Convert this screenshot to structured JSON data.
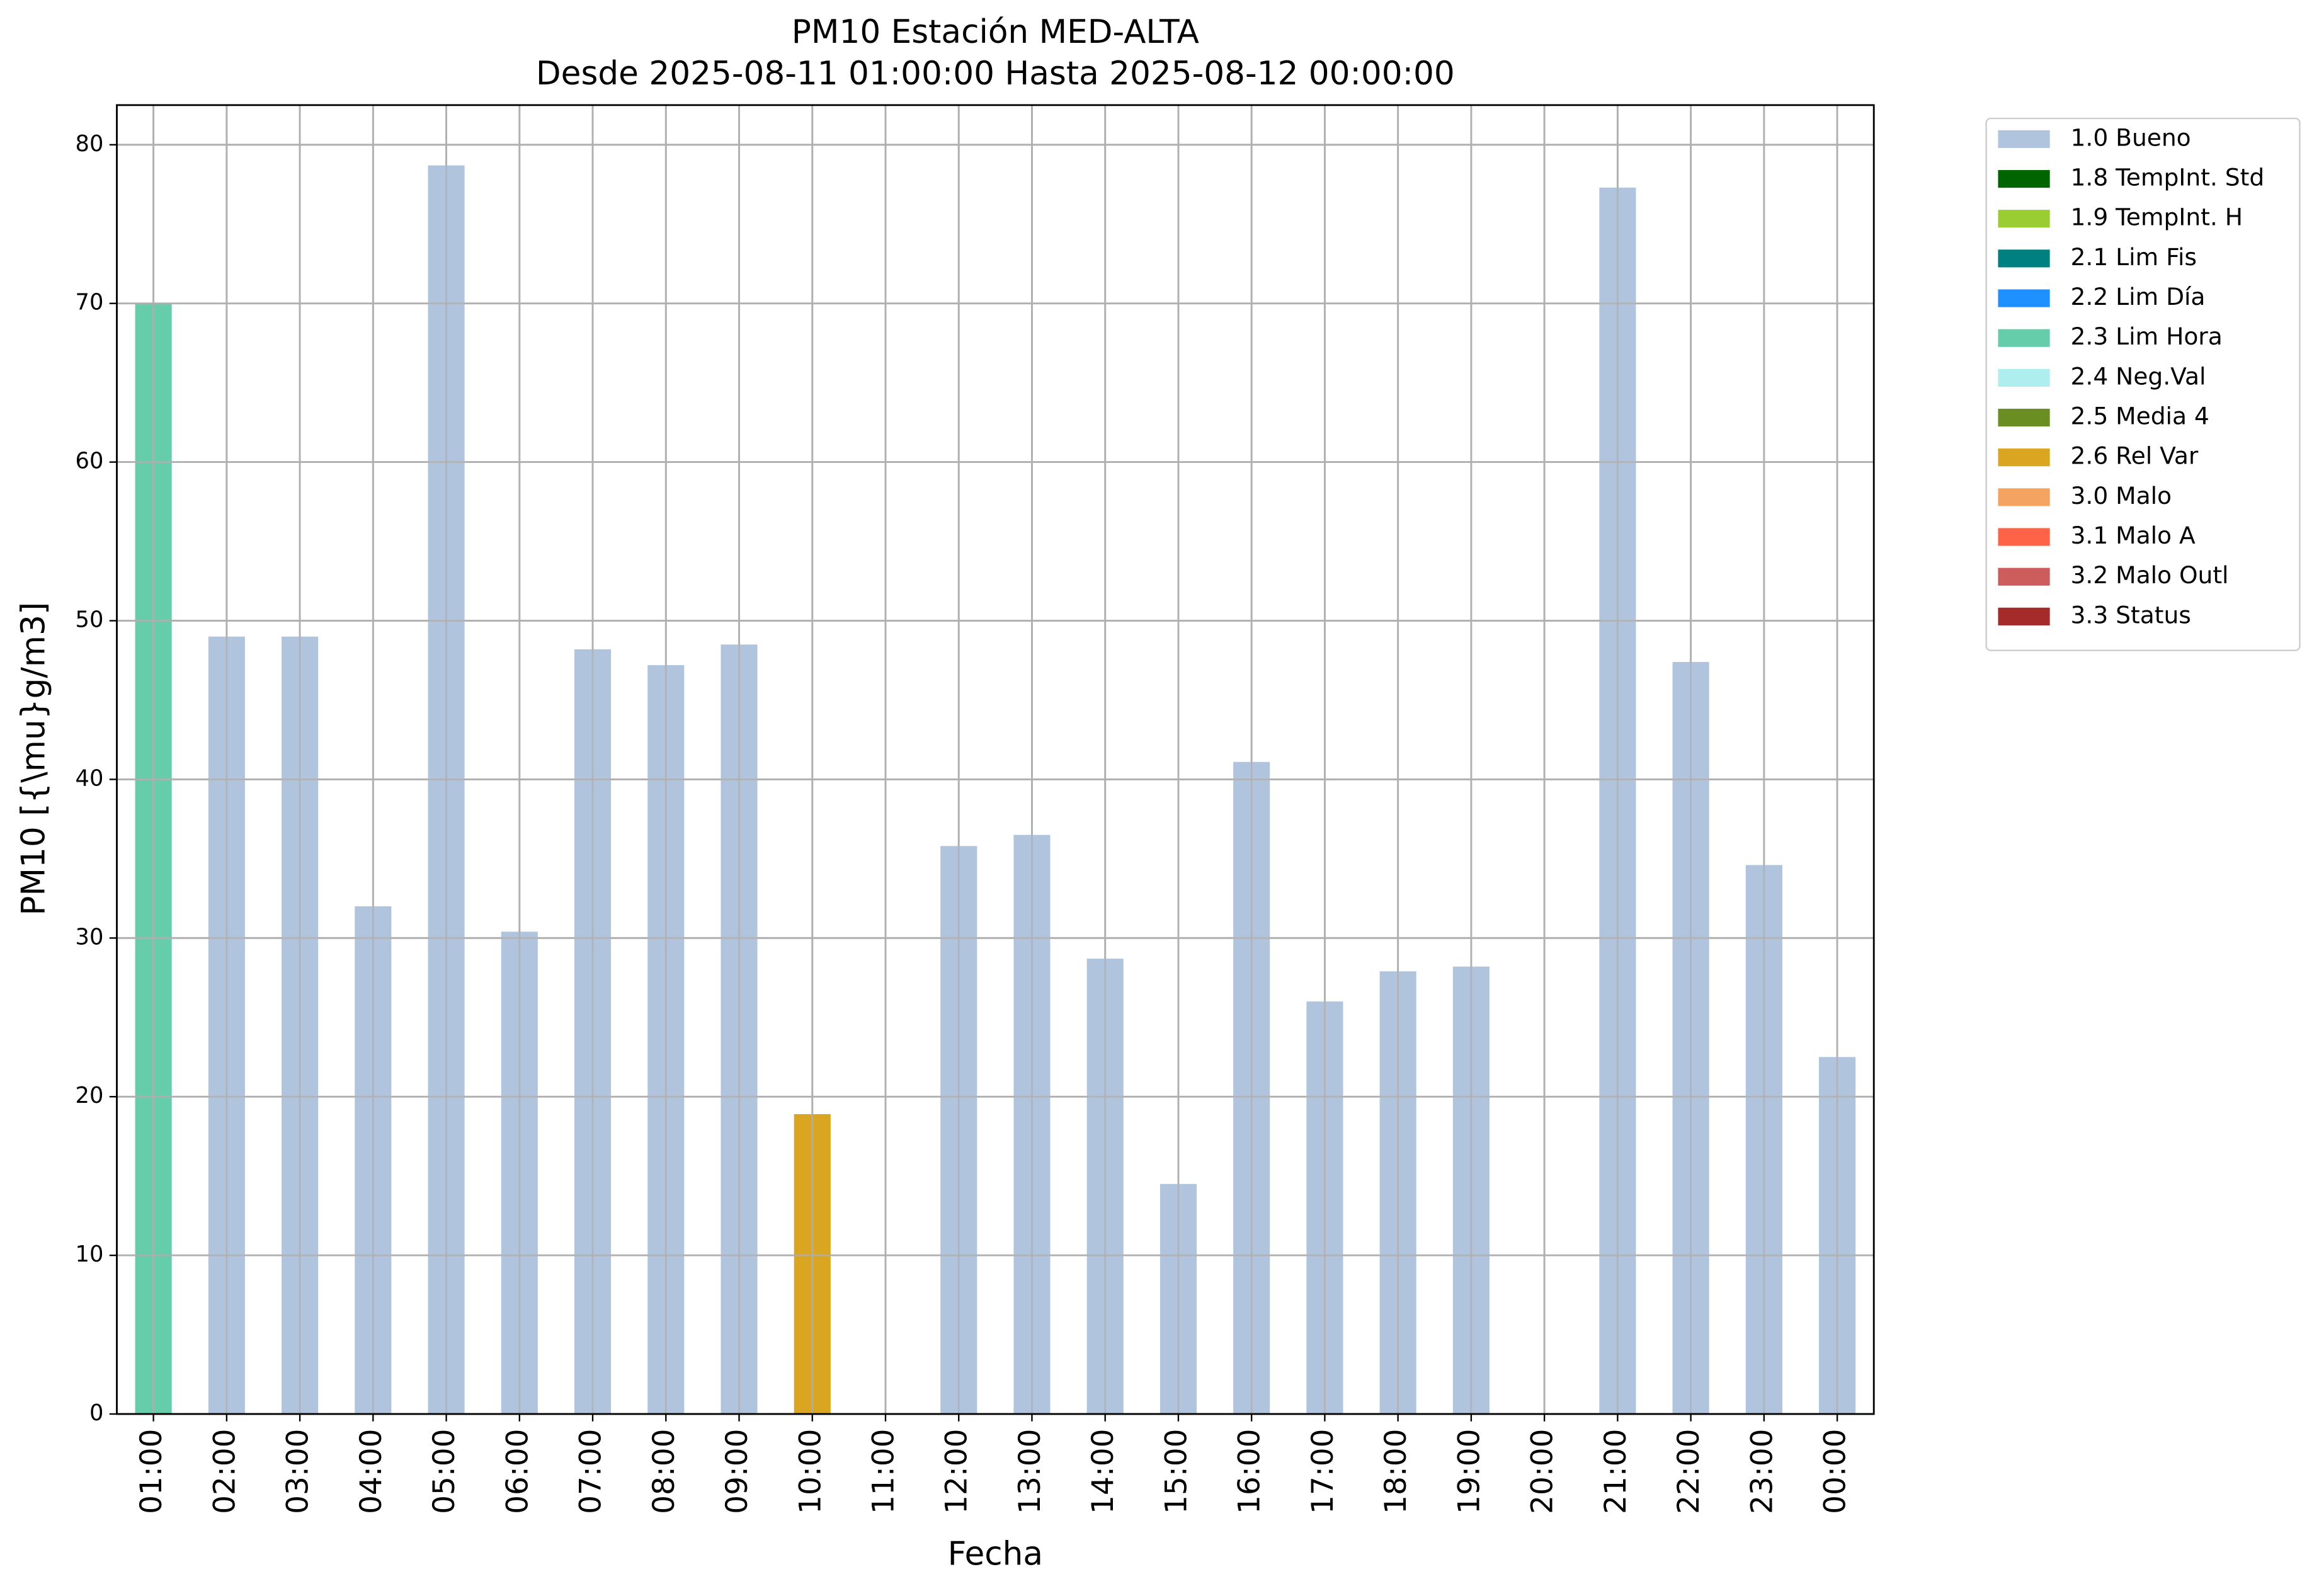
{
  "chart_data": {
    "type": "stacked_bar",
    "title": "PM10 Estación MED-ALTA",
    "subtitle": "Desde 2025-08-11 01:00:00 Hasta 2025-08-12 00:00:00",
    "x_label": "Fecha",
    "y_label": "PM10 [{\\mu}g/m3]",
    "categories": [
      "01:00",
      "02:00",
      "03:00",
      "04:00",
      "05:00",
      "06:00",
      "07:00",
      "08:00",
      "09:00",
      "10:00",
      "11:00",
      "12:00",
      "13:00",
      "14:00",
      "15:00",
      "16:00",
      "17:00",
      "18:00",
      "19:00",
      "20:00",
      "21:00",
      "22:00",
      "23:00",
      "00:00"
    ],
    "series": [
      {
        "name": "1.0 Bueno",
        "color": "#b0c4de",
        "values": [
          null,
          49,
          49,
          32,
          78.7,
          30.4,
          48.2,
          47.2,
          48.5,
          null,
          null,
          35.8,
          36.5,
          28.7,
          14.5,
          41.1,
          26,
          27.9,
          28.2,
          null,
          77.3,
          47.4,
          34.6,
          22.5
        ]
      },
      {
        "name": "1.8 TempInt. Std",
        "color": "#006400",
        "values": [
          null,
          null,
          null,
          null,
          null,
          null,
          null,
          null,
          null,
          null,
          null,
          null,
          null,
          null,
          null,
          null,
          null,
          null,
          null,
          null,
          null,
          null,
          null,
          null
        ]
      },
      {
        "name": "1.9 TempInt. H",
        "color": "#9acd32",
        "values": [
          null,
          null,
          null,
          null,
          null,
          null,
          null,
          null,
          null,
          null,
          null,
          null,
          null,
          null,
          null,
          null,
          null,
          null,
          null,
          null,
          null,
          null,
          null,
          null
        ]
      },
      {
        "name": "2.1 Lim Fis",
        "color": "#008080",
        "values": [
          null,
          null,
          null,
          null,
          null,
          null,
          null,
          null,
          null,
          null,
          null,
          null,
          null,
          null,
          null,
          null,
          null,
          null,
          null,
          null,
          null,
          null,
          null,
          null
        ]
      },
      {
        "name": "2.2 Lim Día",
        "color": "#1e90ff",
        "values": [
          null,
          null,
          null,
          null,
          null,
          null,
          null,
          null,
          null,
          null,
          null,
          null,
          null,
          null,
          null,
          null,
          null,
          null,
          null,
          null,
          null,
          null,
          null,
          null
        ]
      },
      {
        "name": "2.3 Lim Hora",
        "color": "#66cdaa",
        "values": [
          70,
          null,
          null,
          null,
          null,
          null,
          null,
          null,
          null,
          null,
          null,
          null,
          null,
          null,
          null,
          null,
          null,
          null,
          null,
          null,
          null,
          null,
          null,
          null
        ]
      },
      {
        "name": "2.4 Neg.Val",
        "color": "#afeeee",
        "values": [
          null,
          null,
          null,
          null,
          null,
          null,
          null,
          null,
          null,
          null,
          null,
          null,
          null,
          null,
          null,
          null,
          null,
          null,
          null,
          null,
          null,
          null,
          null,
          null
        ]
      },
      {
        "name": "2.5 Media 4",
        "color": "#6b8e23",
        "values": [
          null,
          null,
          null,
          null,
          null,
          null,
          null,
          null,
          null,
          null,
          null,
          null,
          null,
          null,
          null,
          null,
          null,
          null,
          null,
          null,
          null,
          null,
          null,
          null
        ]
      },
      {
        "name": "2.6 Rel Var",
        "color": "#daa520",
        "values": [
          null,
          null,
          null,
          null,
          null,
          null,
          null,
          null,
          null,
          18.9,
          null,
          null,
          null,
          null,
          null,
          null,
          null,
          null,
          null,
          null,
          null,
          null,
          null,
          null
        ]
      },
      {
        "name": "3.0 Malo",
        "color": "#f4a460",
        "values": [
          null,
          null,
          null,
          null,
          null,
          null,
          null,
          null,
          null,
          null,
          null,
          null,
          null,
          null,
          null,
          null,
          null,
          null,
          null,
          null,
          null,
          null,
          null,
          null
        ]
      },
      {
        "name": "3.1 Malo A",
        "color": "#ff6347",
        "values": [
          null,
          null,
          null,
          null,
          null,
          null,
          null,
          null,
          null,
          null,
          null,
          null,
          null,
          null,
          null,
          null,
          null,
          null,
          null,
          null,
          null,
          null,
          null,
          null
        ]
      },
      {
        "name": "3.2 Malo Outl",
        "color": "#cd5c5c",
        "values": [
          null,
          null,
          null,
          null,
          null,
          null,
          null,
          null,
          null,
          null,
          null,
          null,
          null,
          null,
          null,
          null,
          null,
          null,
          null,
          null,
          null,
          null,
          null,
          null
        ]
      },
      {
        "name": "3.3 Status",
        "color": "#a52a2a",
        "values": [
          null,
          null,
          null,
          null,
          null,
          null,
          null,
          null,
          null,
          null,
          null,
          null,
          null,
          null,
          null,
          null,
          null,
          null,
          null,
          null,
          null,
          null,
          null,
          null
        ]
      }
    ],
    "ylim": [
      0,
      82.5
    ],
    "yticks": [
      0,
      10,
      20,
      30,
      40,
      50,
      60,
      70,
      80
    ],
    "grid": true,
    "legend": "outside-right"
  }
}
